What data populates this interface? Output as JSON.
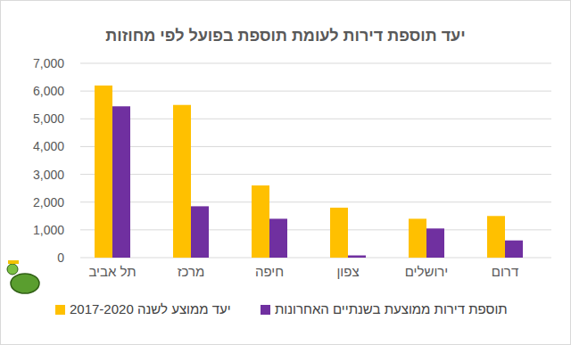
{
  "chart_data": {
    "type": "bar",
    "title": "יעד תוספת דירות לעומת תוספת בפועל לפי מחוזות",
    "categories": [
      "תל אביב",
      "מרכז",
      "חיפה",
      "צפון",
      "ירושלים",
      "דרום"
    ],
    "series": [
      {
        "name": "יעד ממוצע לשנה 2017-2020",
        "color": "#ffc000",
        "values": [
          6200,
          5500,
          2600,
          1800,
          1400,
          1500
        ]
      },
      {
        "name": "תוספת דירות ממוצעת בשנתיים האחרונות",
        "color": "#7030a0",
        "values": [
          5450,
          1850,
          1400,
          80,
          1050,
          620
        ]
      }
    ],
    "ylim": [
      0,
      7000
    ],
    "yticks": [
      0,
      {
        "value": 1000,
        "label": "1,000"
      },
      {
        "value": 2000,
        "label": "2,000"
      },
      {
        "value": 3000,
        "label": "3,000"
      },
      {
        "value": 4000,
        "label": "4,000"
      },
      {
        "value": 5000,
        "label": "5,000"
      },
      {
        "value": 6000,
        "label": "6,000"
      },
      {
        "value": 7000,
        "label": "7,000"
      }
    ],
    "grid": true,
    "legend": "bottom"
  }
}
